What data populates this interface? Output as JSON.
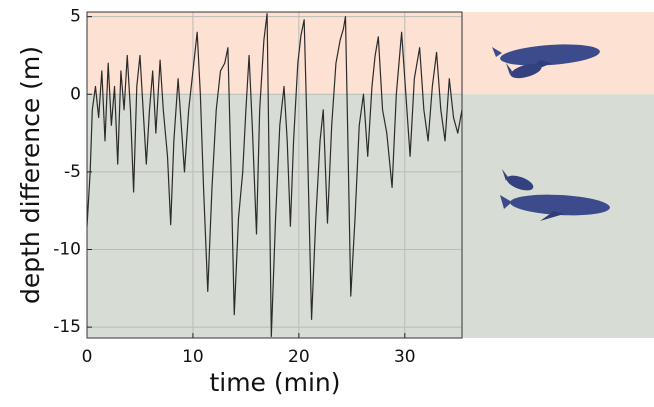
{
  "chart_data": {
    "type": "line",
    "xlabel": "time (min)",
    "ylabel": "depth difference (m)",
    "xlim": [
      0,
      35.4
    ],
    "ylim": [
      -15.7,
      5.3
    ],
    "xticks": [
      0,
      10,
      20,
      30
    ],
    "yticks": [
      5,
      0,
      -5,
      -10,
      -15
    ],
    "grid": true,
    "color": "#2b2b2b",
    "x": [
      0,
      0.3,
      0.5,
      0.8,
      1.1,
      1.4,
      1.7,
      2.0,
      2.3,
      2.6,
      2.9,
      3.2,
      3.5,
      3.8,
      4.1,
      4.4,
      4.7,
      5.0,
      5.3,
      5.6,
      5.9,
      6.2,
      6.5,
      6.9,
      7.2,
      7.6,
      7.9,
      8.2,
      8.6,
      8.9,
      9.2,
      9.6,
      10.0,
      10.4,
      10.7,
      11.0,
      11.4,
      11.8,
      12.2,
      12.6,
      13.0,
      13.3,
      13.6,
      13.9,
      14.3,
      14.7,
      15.0,
      15.3,
      15.6,
      16.0,
      16.3,
      16.7,
      17.0,
      17.2,
      17.4,
      17.8,
      18.2,
      18.6,
      18.9,
      19.2,
      19.5,
      19.9,
      20.2,
      20.5,
      20.8,
      21.2,
      21.6,
      22.0,
      22.3,
      22.7,
      23.1,
      23.5,
      23.9,
      24.2,
      24.4,
      24.6,
      24.9,
      25.3,
      25.7,
      26.1,
      26.5,
      26.9,
      27.2,
      27.5,
      27.9,
      28.3,
      28.8,
      29.2,
      29.7,
      30.1,
      30.5,
      30.9,
      31.4,
      31.8,
      32.2,
      32.6,
      33.0,
      33.4,
      33.8,
      34.2,
      34.6,
      35.0,
      35.4
    ],
    "values": [
      -8.5,
      -5,
      -1,
      0.5,
      -1.5,
      1.5,
      -3,
      2,
      -2,
      0.5,
      -4.5,
      1.5,
      -1,
      2.5,
      -1,
      -6.3,
      0.5,
      2.5,
      -1,
      -4.5,
      -1,
      1.5,
      -2.5,
      2.2,
      -1,
      -4,
      -8.4,
      -3,
      1,
      -2,
      -5,
      -1,
      1.5,
      4,
      0,
      -6,
      -12.7,
      -6,
      -1,
      1.5,
      2,
      3,
      -5,
      -14.2,
      -8,
      -5,
      -1,
      2.5,
      -2,
      -9,
      -1,
      3.5,
      5.2,
      -5,
      -15.6,
      -8,
      -2,
      0.5,
      -3,
      -8.5,
      -3,
      2,
      3.8,
      4.8,
      -3,
      -14.5,
      -8,
      -3,
      -1,
      -8.3,
      -2,
      2,
      3.5,
      4.2,
      5,
      -2,
      -13,
      -8,
      -2,
      0,
      -4,
      0.5,
      2.5,
      3.7,
      -1,
      -2.5,
      -6,
      0,
      4,
      0,
      -4,
      1,
      3,
      -1,
      -3,
      0.5,
      2.7,
      -1,
      -3,
      1,
      -1.5,
      -2.5,
      -1
    ]
  }
}
